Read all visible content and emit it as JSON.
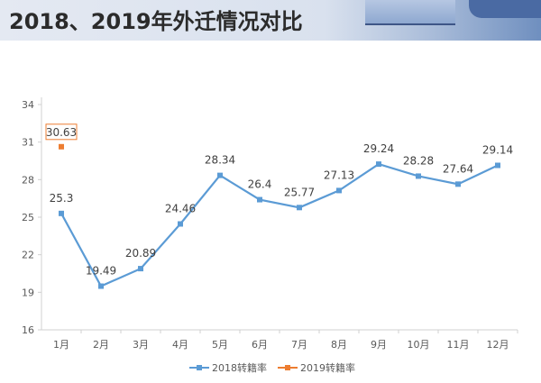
{
  "header": {
    "title": "2018、2019年外迁情况对比"
  },
  "chart_data": {
    "type": "line",
    "title": "",
    "categories": [
      "1月",
      "2月",
      "3月",
      "4月",
      "5月",
      "6月",
      "7月",
      "8月",
      "9月",
      "10月",
      "11月",
      "12月"
    ],
    "yticks": [
      16,
      19,
      22,
      25,
      28,
      31,
      34
    ],
    "ylim": [
      16,
      34
    ],
    "grid": false,
    "legend": "bottom",
    "series": [
      {
        "name": "2018转籍率",
        "color": "#5b9bd5",
        "values": [
          25.3,
          19.49,
          20.89,
          24.46,
          28.34,
          26.4,
          25.77,
          27.13,
          29.24,
          28.28,
          27.64,
          29.14
        ],
        "labels": [
          "25.3",
          "19.49",
          "20.89",
          "24.46",
          "28.34",
          "26.4",
          "25.77",
          "27.13",
          "29.24",
          "28.28",
          "27.64",
          "29.14"
        ]
      },
      {
        "name": "2019转籍率",
        "color": "#ed7d31",
        "values": [
          30.63,
          null,
          null,
          null,
          null,
          null,
          null,
          null,
          null,
          null,
          null,
          null
        ],
        "labels": [
          "30.63"
        ]
      }
    ]
  }
}
